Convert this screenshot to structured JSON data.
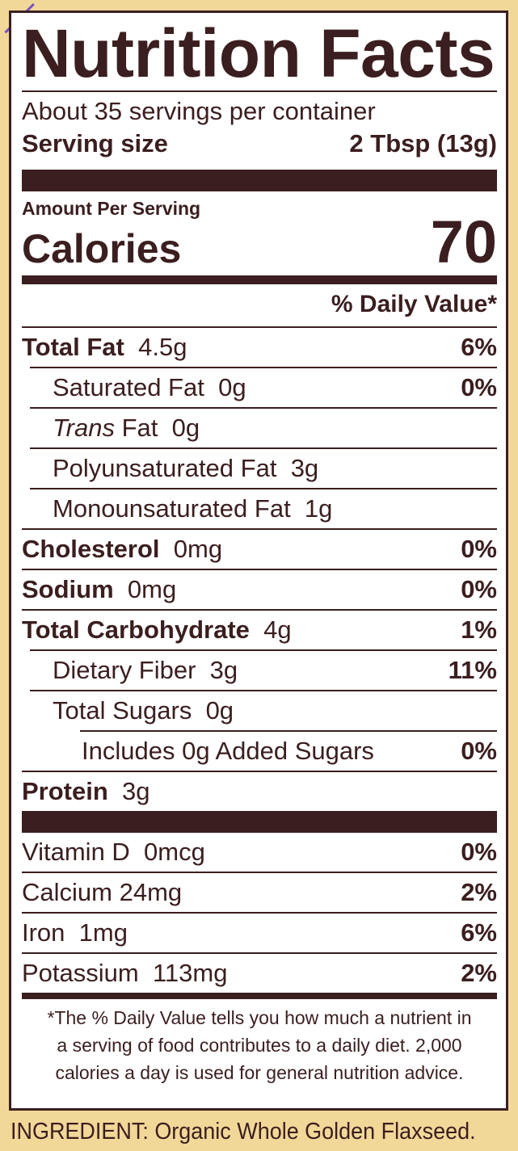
{
  "title": "Nutrition Facts",
  "servings_per_container": "About 35 servings per container",
  "serving_size_label": "Serving size",
  "serving_size_value": "2 Tbsp (13g)",
  "amount_per_serving": "Amount Per Serving",
  "calories_label": "Calories",
  "calories_value": "70",
  "daily_value_header": "% Daily Value*",
  "nutrients": [
    {
      "name": "Total Fat",
      "amount": "4.5g",
      "dv": "6%"
    },
    {
      "name": "Saturated Fat",
      "amount": "0g",
      "dv": "0%"
    },
    {
      "name": "Trans",
      "name_suffix": " Fat",
      "amount": "0g",
      "dv": ""
    },
    {
      "name": "Polyunsaturated Fat",
      "amount": "3g",
      "dv": ""
    },
    {
      "name": "Monounsaturated Fat",
      "amount": "1g",
      "dv": ""
    },
    {
      "name": "Cholesterol",
      "amount": "0mg",
      "dv": "0%"
    },
    {
      "name": "Sodium",
      "amount": "0mg",
      "dv": "0%"
    },
    {
      "name": "Total Carbohydrate",
      "amount": "4g",
      "dv": "1%"
    },
    {
      "name": "Dietary Fiber",
      "amount": "3g",
      "dv": "11%"
    },
    {
      "name": "Total Sugars",
      "amount": "0g",
      "dv": ""
    },
    {
      "name": "Includes 0g Added Sugars",
      "amount": "",
      "dv": "0%"
    },
    {
      "name": "Protein",
      "amount": "3g",
      "dv": ""
    }
  ],
  "vitamins": [
    {
      "name": "Vitamin D",
      "amount": "0mcg",
      "dv": "0%"
    },
    {
      "name": "Calcium",
      "amount": "24mg",
      "dv": "2%"
    },
    {
      "name": "Iron",
      "amount": "1mg",
      "dv": "6%"
    },
    {
      "name": "Potassium",
      "amount": "113mg",
      "dv": "2%"
    }
  ],
  "footnote_line1": "*The % Daily Value tells you how much a nutrient in",
  "footnote_line2": "a serving of food contributes to a daily diet. 2,000",
  "footnote_line3": "calories a day is used for general nutrition advice.",
  "ingredient": "INGREDIENT: Organic Whole Golden Flaxseed.",
  "colors": {
    "background": "#f2d898",
    "ink": "#3b1e1f",
    "panel": "#ffffff"
  }
}
